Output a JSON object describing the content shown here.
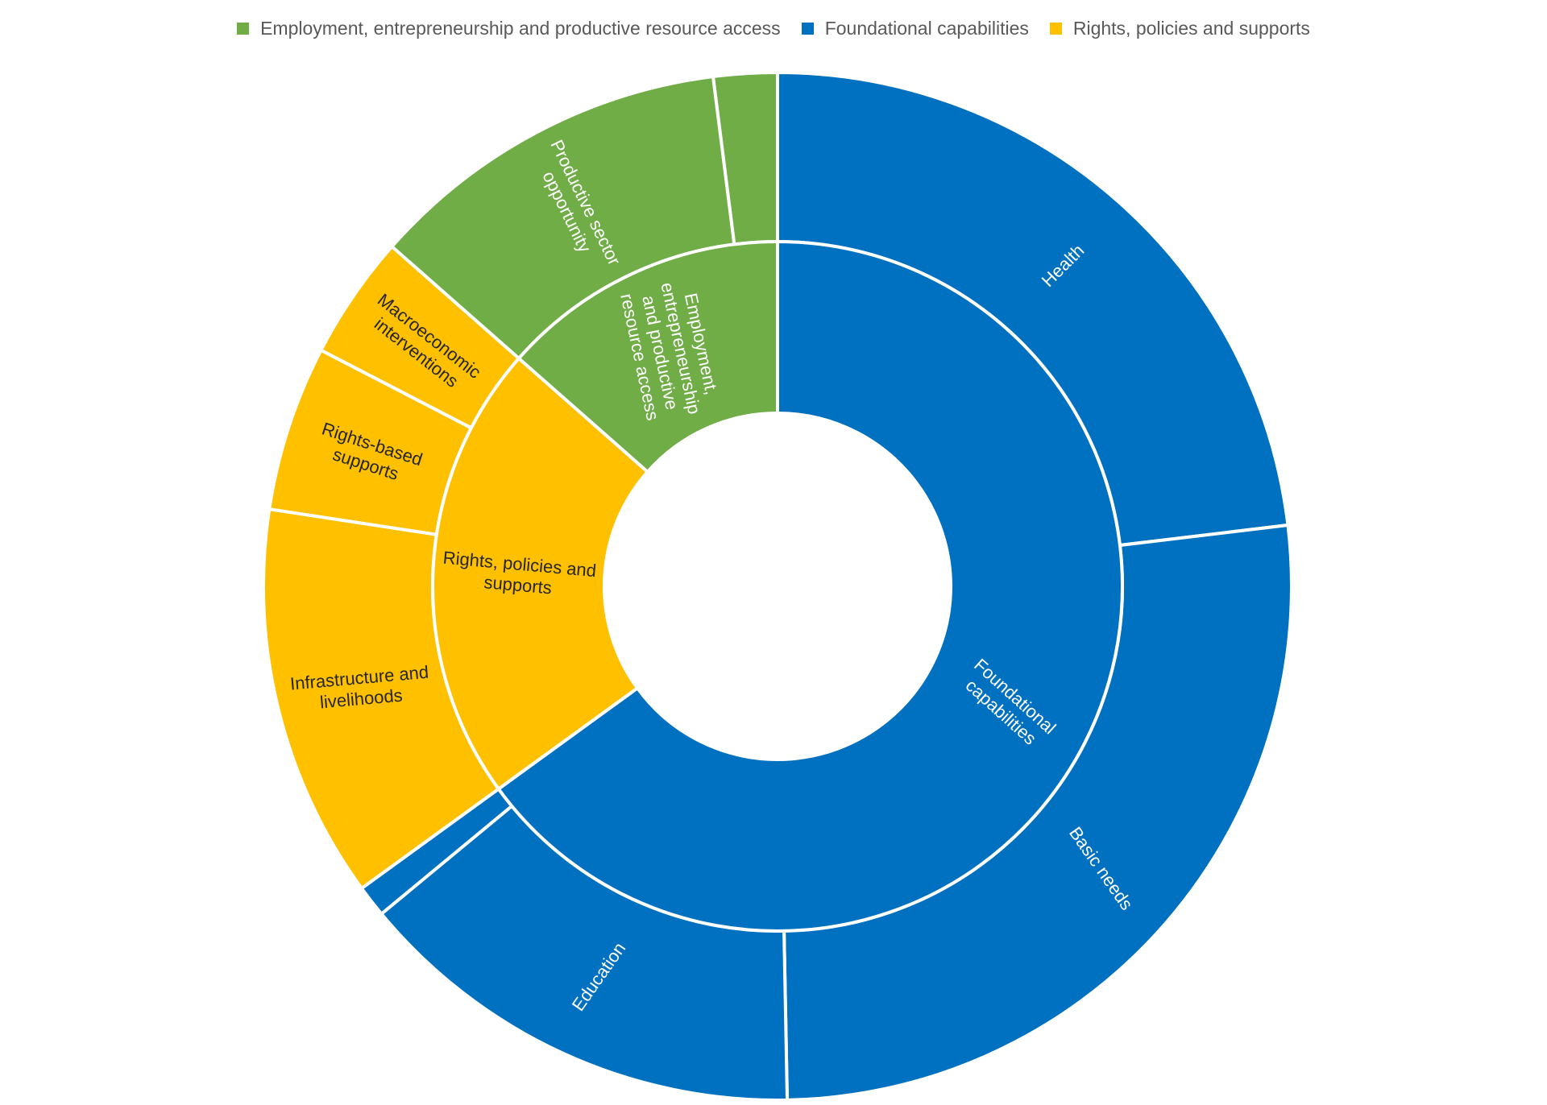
{
  "chart_data": {
    "type": "sunburst",
    "legend": [
      {
        "name": "Employment, entrepreneurship and productive resource access",
        "color": "#70AD47"
      },
      {
        "name": "Foundational capabilities",
        "color": "#0070C0"
      },
      {
        "name": "Rights, policies and supports",
        "color": "#FFC000"
      }
    ],
    "legend_position": "top",
    "inner": [
      {
        "name": "Foundational capabilities",
        "label_lines": [
          "Foundational",
          "capabilities"
        ],
        "value": 65.0,
        "color": "#0070C0",
        "text_color": "#ffffff"
      },
      {
        "name": "Rights, policies and supports",
        "label_lines": [
          "Rights, policies and",
          "supports"
        ],
        "value": 21.5,
        "color": "#FFC000",
        "text_color": "#262626"
      },
      {
        "name": "Employment, entrepreneurship and productive resource access",
        "label_lines": [
          "Employment,",
          "entrepreneurship",
          "and productive",
          "resource access"
        ],
        "value": 13.5,
        "color": "#70AD47",
        "text_color": "#ffffff"
      }
    ],
    "outer": [
      {
        "name": "Health",
        "label_lines": [
          "Health"
        ],
        "parent": "Foundational capabilities",
        "value": 23.1,
        "color": "#0070C0",
        "text_color": "#ffffff"
      },
      {
        "name": "Basic needs",
        "label_lines": [
          "Basic needs"
        ],
        "parent": "Foundational capabilities",
        "value": 26.6,
        "color": "#0070C0",
        "text_color": "#ffffff"
      },
      {
        "name": "Education",
        "label_lines": [
          "Education"
        ],
        "parent": "Foundational capabilities",
        "value": 14.3,
        "color": "#0070C0",
        "text_color": "#ffffff"
      },
      {
        "name": "",
        "label_lines": [],
        "parent": "Foundational capabilities",
        "value": 1.0,
        "color": "#0070C0",
        "text_color": "#ffffff"
      },
      {
        "name": "Infrastructure and livelihoods",
        "label_lines": [
          "Infrastructure and",
          "livelihoods"
        ],
        "parent": "Rights, policies and supports",
        "value": 12.4,
        "color": "#FFC000",
        "text_color": "#262626"
      },
      {
        "name": "Rights-based supports",
        "label_lines": [
          "Rights-based",
          "supports"
        ],
        "parent": "Rights, policies and supports",
        "value": 5.2,
        "color": "#FFC000",
        "text_color": "#262626"
      },
      {
        "name": "Macroeconomic interventions",
        "label_lines": [
          "Macroeconomic",
          "interventions"
        ],
        "parent": "Rights, policies and supports",
        "value": 3.9,
        "color": "#FFC000",
        "text_color": "#262626"
      },
      {
        "name": "Productive sector opportunity",
        "label_lines": [
          "Productive sector",
          "opportunity"
        ],
        "parent": "Employment, entrepreneurship and productive resource access",
        "value": 11.5,
        "color": "#70AD47",
        "text_color": "#ffffff"
      },
      {
        "name": "",
        "label_lines": [],
        "parent": "Employment, entrepreneurship and productive resource access",
        "value": 2.0,
        "color": "#70AD47",
        "text_color": "#ffffff"
      }
    ]
  }
}
